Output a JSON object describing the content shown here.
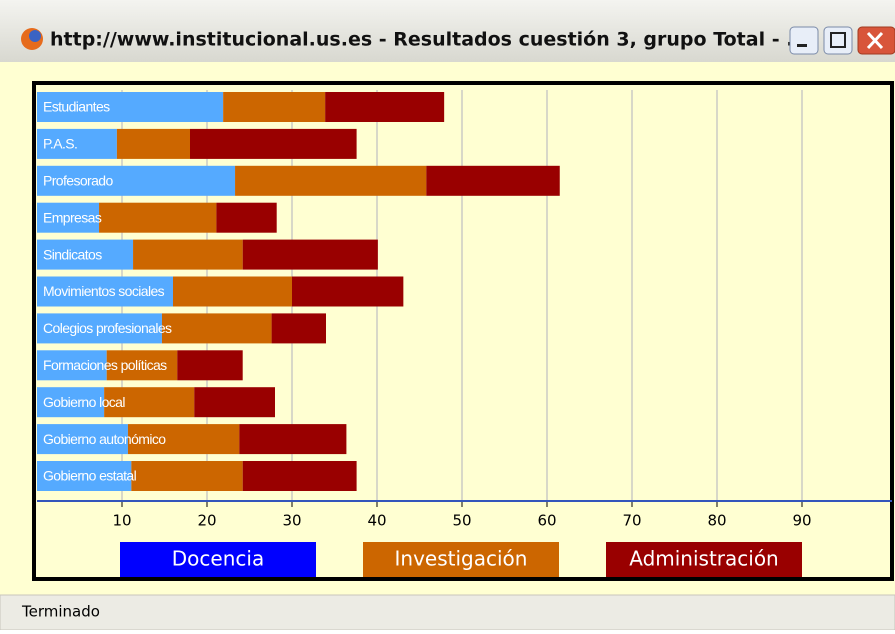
{
  "window": {
    "title": "http://www.institucional.us.es - Resultados cuestión 3, grupo Total - ...",
    "status": "Terminado"
  },
  "chart_data": {
    "type": "bar",
    "orientation": "horizontal",
    "stacked": true,
    "categories": [
      "Estudiantes",
      "P.A.S.",
      "Profesorado",
      "Empresas",
      "Sindicatos",
      "Movimientos sociales",
      "Colegios profesionales",
      "Formaciones políticas",
      "Gobierno local",
      "Gobierno autonómico",
      "Gobierno estatal"
    ],
    "series": [
      {
        "name": "Docencia",
        "color": "#55aaff",
        "legend_color": "#0000ff",
        "values": [
          21.9,
          9.4,
          23.3,
          7.3,
          11.3,
          16.0,
          14.7,
          8.2,
          7.9,
          10.7,
          11.1
        ]
      },
      {
        "name": "Investigación",
        "color": "#cc6600",
        "legend_color": "#cc6600",
        "values": [
          12.0,
          8.6,
          22.5,
          13.8,
          12.9,
          14.0,
          12.9,
          8.3,
          10.6,
          13.1,
          13.1
        ]
      },
      {
        "name": "Administración",
        "color": "#990000",
        "legend_color": "#990000",
        "values": [
          14.0,
          19.6,
          15.7,
          7.1,
          15.9,
          13.1,
          6.4,
          7.7,
          9.5,
          12.6,
          13.4
        ]
      }
    ],
    "xlim": [
      0,
      100
    ],
    "xticks": [
      10,
      20,
      30,
      40,
      50,
      60,
      70,
      80,
      90
    ],
    "grid": true
  }
}
